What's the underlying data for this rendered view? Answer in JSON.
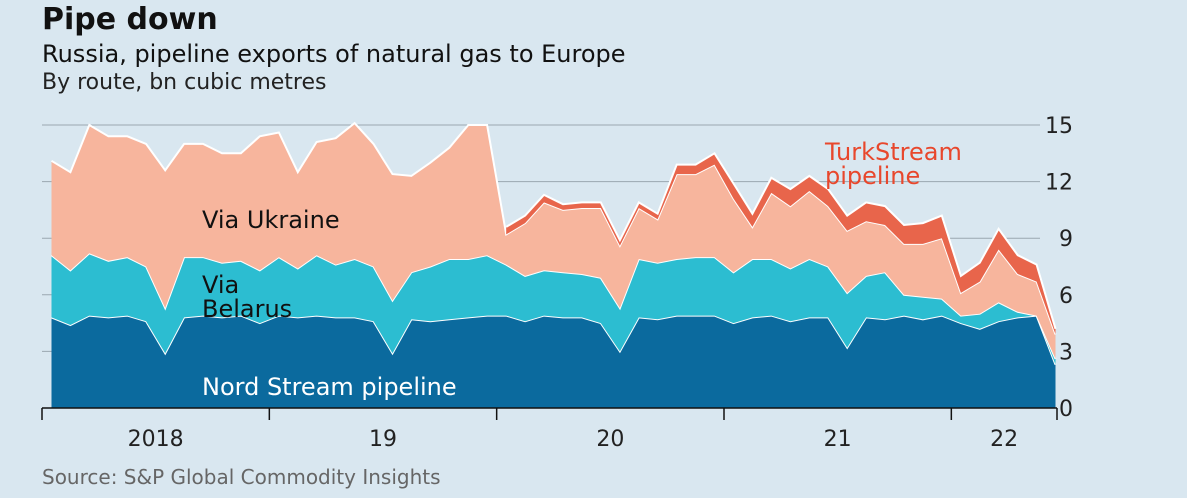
{
  "chart_data": {
    "type": "stacked_area",
    "title": "Pipe down",
    "subtitle": "Russia, pipeline exports of natural gas to Europe",
    "unit_label": "By route, bn cubic metres",
    "source": "Source: S&P Global Commodity Insights",
    "x": [
      2018.042,
      2018.125,
      2018.208,
      2018.292,
      2018.375,
      2018.458,
      2018.542,
      2018.625,
      2018.708,
      2018.792,
      2018.875,
      2018.958,
      2019.042,
      2019.125,
      2019.208,
      2019.292,
      2019.375,
      2019.458,
      2019.542,
      2019.625,
      2019.708,
      2019.792,
      2019.875,
      2019.958,
      2020.042,
      2020.125,
      2020.208,
      2020.292,
      2020.375,
      2020.458,
      2020.542,
      2020.625,
      2020.708,
      2020.792,
      2020.875,
      2020.958,
      2021.042,
      2021.125,
      2021.208,
      2021.292,
      2021.375,
      2021.458,
      2021.542,
      2021.625,
      2021.708,
      2021.792,
      2021.875,
      2021.958,
      2022.042,
      2022.125,
      2022.208,
      2022.292,
      2022.375,
      2022.458
    ],
    "series": [
      {
        "name": "Nord Stream pipeline",
        "color": "#0b6a9e",
        "values": [
          4.8,
          4.4,
          4.9,
          4.8,
          4.9,
          4.6,
          2.9,
          4.8,
          4.9,
          4.8,
          4.9,
          4.5,
          4.9,
          4.8,
          4.9,
          4.8,
          4.8,
          4.6,
          2.9,
          4.7,
          4.6,
          4.7,
          4.8,
          4.9,
          4.9,
          4.6,
          4.9,
          4.8,
          4.8,
          4.5,
          3.0,
          4.8,
          4.7,
          4.9,
          4.9,
          4.9,
          4.5,
          4.8,
          4.9,
          4.6,
          4.8,
          4.8,
          3.2,
          4.8,
          4.7,
          4.9,
          4.7,
          4.9,
          4.5,
          4.2,
          4.6,
          4.8,
          4.9,
          2.3
        ]
      },
      {
        "name": "Via Belarus",
        "color": "#2cbdd1",
        "values": [
          3.3,
          2.9,
          3.3,
          3.0,
          3.1,
          2.9,
          2.4,
          3.2,
          3.1,
          2.9,
          2.9,
          2.8,
          3.1,
          2.6,
          3.2,
          2.8,
          3.1,
          2.9,
          2.8,
          2.5,
          2.9,
          3.2,
          3.1,
          3.2,
          2.7,
          2.4,
          2.4,
          2.4,
          2.3,
          2.4,
          2.3,
          3.1,
          3.0,
          3.0,
          3.1,
          3.1,
          2.7,
          3.1,
          3.0,
          2.8,
          3.1,
          2.7,
          2.9,
          2.2,
          2.5,
          1.1,
          1.2,
          0.9,
          0.4,
          0.8,
          1.0,
          0.3,
          0.0,
          0.3
        ]
      },
      {
        "name": "Via Ukraine",
        "color": "#f7b59d",
        "values": [
          5.0,
          5.2,
          6.8,
          6.6,
          6.4,
          6.5,
          7.3,
          6.0,
          6.0,
          5.8,
          5.7,
          7.1,
          6.6,
          5.1,
          6.0,
          6.7,
          7.2,
          6.5,
          6.7,
          5.1,
          5.5,
          5.9,
          7.1,
          6.9,
          1.6,
          2.8,
          3.6,
          3.3,
          3.5,
          3.7,
          3.3,
          2.7,
          2.3,
          4.5,
          4.4,
          4.9,
          3.9,
          1.7,
          3.5,
          3.3,
          3.6,
          3.2,
          3.3,
          2.9,
          2.5,
          2.7,
          2.8,
          3.2,
          1.2,
          1.7,
          2.8,
          2.0,
          1.8,
          1.3
        ]
      },
      {
        "name": "TurkStream pipeline",
        "color": "#e8654b",
        "values": [
          null,
          null,
          null,
          null,
          null,
          null,
          null,
          null,
          null,
          null,
          null,
          null,
          null,
          null,
          null,
          null,
          null,
          null,
          null,
          null,
          null,
          null,
          null,
          null,
          0.4,
          0.4,
          0.4,
          0.3,
          0.3,
          0.3,
          0.3,
          0.3,
          0.3,
          0.5,
          0.5,
          0.6,
          0.8,
          0.7,
          0.8,
          0.9,
          0.8,
          0.9,
          0.8,
          1.0,
          1.0,
          1.0,
          1.1,
          1.2,
          0.9,
          1.0,
          1.1,
          1.0,
          0.9,
          0.3
        ]
      }
    ],
    "xlim": [
      2018,
      2022.5
    ],
    "xticks": [
      {
        "value": 2018,
        "label": "2018"
      },
      {
        "value": 2019,
        "label": "19"
      },
      {
        "value": 2020,
        "label": "20"
      },
      {
        "value": 2021,
        "label": "21"
      },
      {
        "value": 2022,
        "label": "22"
      }
    ],
    "ylim": [
      0,
      15
    ],
    "yticks": [
      0,
      3,
      6,
      9,
      12,
      15
    ],
    "grid": true
  }
}
